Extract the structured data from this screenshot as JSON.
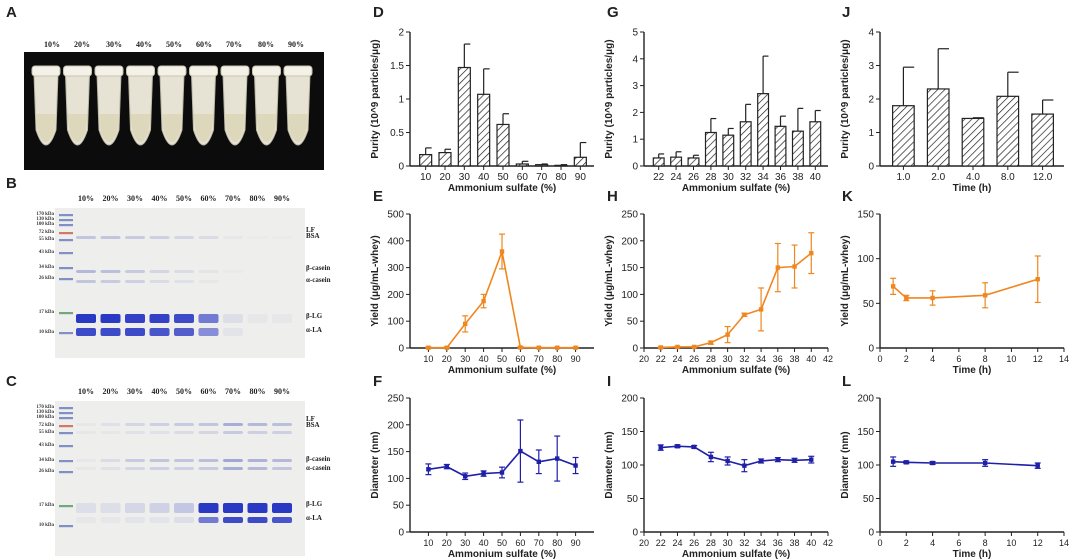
{
  "panel_letters": [
    "A",
    "B",
    "C",
    "D",
    "E",
    "F",
    "G",
    "H",
    "I",
    "J",
    "K",
    "L"
  ],
  "photo_a": {
    "lanes": [
      "10%",
      "20%",
      "30%",
      "40%",
      "50%",
      "60%",
      "70%",
      "80%",
      "90%"
    ]
  },
  "gels": [
    {
      "id": "B",
      "lanes": [
        "10%",
        "20%",
        "30%",
        "40%",
        "50%",
        "60%",
        "70%",
        "80%",
        "90%"
      ],
      "markers": [
        "170 kDa",
        "130 kDa",
        "100 kDa",
        "72 kDa",
        "55 kDa",
        "43 kDa",
        "34 kDa",
        "26 kDa",
        "17 kDa",
        "10 kDa"
      ],
      "proteins": [
        "LF",
        "BSA",
        "β-casein",
        "α-casein",
        "β-LG",
        "α-LA"
      ]
    },
    {
      "id": "C",
      "lanes": [
        "10%",
        "20%",
        "30%",
        "40%",
        "50%",
        "60%",
        "70%",
        "80%",
        "90%"
      ],
      "markers": [
        "170 kDa",
        "130 kDa",
        "100 kDa",
        "72 kDa",
        "55 kDa",
        "43 kDa",
        "34 kDa",
        "26 kDa",
        "17 kDa",
        "10 kDa"
      ],
      "proteins": [
        "LF",
        "BSA",
        "β-casein",
        "α-casein",
        "β-LG",
        "α-LA"
      ]
    }
  ],
  "chart_data": [
    {
      "id": "D",
      "type": "bar",
      "ylabel": "Purity (10^9 particles/μg)",
      "xlabel": "Ammonium sulfate (%)",
      "categories": [
        "10",
        "20",
        "30",
        "40",
        "50",
        "60",
        "70",
        "80",
        "90"
      ],
      "values": [
        0.17,
        0.2,
        1.47,
        1.07,
        0.62,
        0.03,
        0.02,
        0.01,
        0.13
      ],
      "errors": [
        0.1,
        0.05,
        0.35,
        0.38,
        0.16,
        0.04,
        0.01,
        0.01,
        0.22
      ],
      "ylim": [
        0,
        2.0
      ],
      "yticks": [
        0,
        0.5,
        1.0,
        1.5,
        2.0
      ]
    },
    {
      "id": "G",
      "type": "bar",
      "ylabel": "Purity (10^9 particles/μg)",
      "xlabel": "Ammonium sulfate (%)",
      "categories": [
        "22",
        "24",
        "26",
        "28",
        "30",
        "32",
        "34",
        "36",
        "38",
        "40"
      ],
      "values": [
        0.3,
        0.33,
        0.3,
        1.25,
        1.15,
        1.65,
        2.7,
        1.48,
        1.3,
        1.65
      ],
      "errors": [
        0.15,
        0.2,
        0.1,
        0.52,
        0.25,
        0.65,
        1.4,
        0.38,
        0.85,
        0.42
      ],
      "ylim": [
        0,
        5
      ],
      "yticks": [
        0,
        1,
        2,
        3,
        4,
        5
      ]
    },
    {
      "id": "J",
      "type": "bar",
      "ylabel": "Purity (10^9 particles/μg)",
      "xlabel": "Time (h)",
      "categories": [
        "1.0",
        "2.0",
        "4.0",
        "8.0",
        "12.0"
      ],
      "values": [
        1.8,
        2.3,
        1.42,
        2.08,
        1.55
      ],
      "errors": [
        1.15,
        1.2,
        0.02,
        0.72,
        0.42
      ],
      "ylim": [
        0,
        4
      ],
      "yticks": [
        0,
        1,
        2,
        3,
        4
      ]
    },
    {
      "id": "E",
      "type": "line",
      "ylabel": "Yield (μg/mL-whey)",
      "xlabel": "Ammonium sulfate (%)",
      "color": "#f0861e",
      "x": [
        10,
        20,
        30,
        40,
        50,
        60,
        70,
        80,
        90
      ],
      "y": [
        1,
        1,
        90,
        175,
        360,
        2,
        1,
        1,
        1
      ],
      "errors": [
        3,
        3,
        30,
        25,
        65,
        3,
        2,
        2,
        2
      ],
      "xlim": [
        0,
        100
      ],
      "xticks": [
        10,
        20,
        30,
        40,
        50,
        60,
        70,
        80,
        90
      ],
      "ylim": [
        0,
        500
      ],
      "yticks": [
        0,
        100,
        200,
        300,
        400,
        500
      ]
    },
    {
      "id": "H",
      "type": "line",
      "ylabel": "Yield (μg/mL-whey)",
      "xlabel": "Ammonium sulfate (%)",
      "color": "#f0861e",
      "x": [
        22,
        24,
        26,
        28,
        30,
        32,
        34,
        36,
        38,
        40
      ],
      "y": [
        1,
        2,
        2,
        10,
        25,
        62,
        72,
        150,
        152,
        177
      ],
      "errors": [
        1,
        1,
        1,
        3,
        15,
        3,
        40,
        45,
        40,
        38
      ],
      "xlim": [
        20,
        42
      ],
      "xticks": [
        20,
        22,
        24,
        26,
        28,
        30,
        32,
        34,
        36,
        38,
        40,
        42
      ],
      "ylim": [
        0,
        250
      ],
      "yticks": [
        0,
        50,
        100,
        150,
        200,
        250
      ]
    },
    {
      "id": "K",
      "type": "line",
      "ylabel": "Yield (μg/mL-whey)",
      "xlabel": "Time (h)",
      "color": "#f0861e",
      "x": [
        1,
        2,
        4,
        8,
        12
      ],
      "y": [
        69,
        56,
        56,
        59,
        77
      ],
      "errors": [
        9,
        3,
        8,
        14,
        26
      ],
      "xlim": [
        0,
        14
      ],
      "xticks": [
        0,
        2,
        4,
        6,
        8,
        10,
        12,
        14
      ],
      "ylim": [
        0,
        150
      ],
      "yticks": [
        0,
        50,
        100,
        150
      ]
    },
    {
      "id": "F",
      "type": "line",
      "ylabel": "Diameter (nm)",
      "xlabel": "Ammonium sulfate (%)",
      "color": "#1f1fa8",
      "x": [
        10,
        20,
        30,
        40,
        50,
        60,
        70,
        80,
        90
      ],
      "y": [
        117,
        122,
        104,
        109,
        111,
        151,
        131,
        137,
        124
      ],
      "errors": [
        10,
        4,
        6,
        5,
        10,
        58,
        22,
        42,
        15
      ],
      "xlim": [
        0,
        100
      ],
      "xticks": [
        10,
        20,
        30,
        40,
        50,
        60,
        70,
        80,
        90
      ],
      "ylim": [
        0,
        250
      ],
      "yticks": [
        0,
        50,
        100,
        150,
        200,
        250
      ]
    },
    {
      "id": "I",
      "type": "line",
      "ylabel": "Diameter (nm)",
      "xlabel": "Ammonium sulfate (%)",
      "color": "#1f1fa8",
      "x": [
        22,
        24,
        26,
        28,
        30,
        32,
        34,
        36,
        38,
        40
      ],
      "y": [
        126,
        128,
        127,
        112,
        106,
        99,
        106,
        108,
        107,
        108
      ],
      "errors": [
        4,
        2,
        2,
        7,
        6,
        9,
        3,
        3,
        3,
        5
      ],
      "xlim": [
        20,
        42
      ],
      "xticks": [
        20,
        22,
        24,
        26,
        28,
        30,
        32,
        34,
        36,
        38,
        40,
        42
      ],
      "ylim": [
        0,
        200
      ],
      "yticks": [
        0,
        50,
        100,
        150,
        200
      ]
    },
    {
      "id": "L",
      "type": "line",
      "ylabel": "Diameter (nm)",
      "xlabel": "Time (h)",
      "color": "#1f1fa8",
      "x": [
        1,
        2,
        4,
        8,
        12
      ],
      "y": [
        105,
        104,
        103,
        103,
        99
      ],
      "errors": [
        7,
        2,
        2,
        5,
        4
      ],
      "xlim": [
        0,
        14
      ],
      "xticks": [
        0,
        2,
        4,
        6,
        8,
        10,
        12,
        14
      ],
      "ylim": [
        0,
        200
      ],
      "yticks": [
        0,
        50,
        100,
        150,
        200
      ]
    }
  ]
}
